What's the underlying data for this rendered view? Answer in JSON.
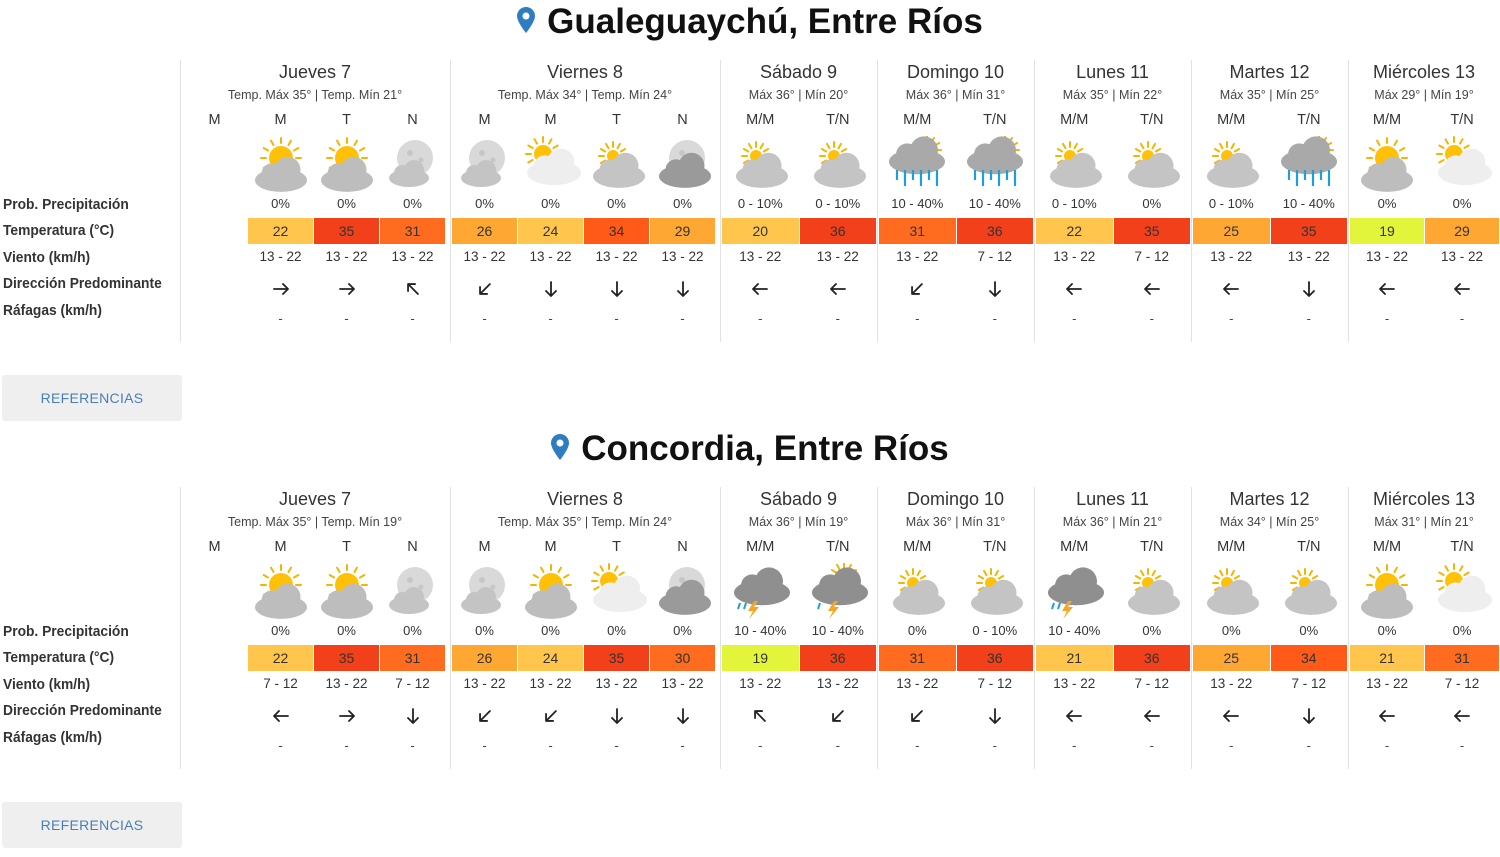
{
  "row_labels": [
    "Prob. Precipitación",
    "Temperatura (°C)",
    "Viento (km/h)",
    "Dirección Predominante",
    "Ráfagas (km/h)"
  ],
  "references_label": "REFERENCIAS",
  "temp_colors": {
    "19": "#e3f53a",
    "20": "#ffc54d",
    "21": "#ffc54d",
    "22": "#ffc54d",
    "24": "#ffc54d",
    "25": "#ffa733",
    "26": "#ffa733",
    "29": "#ffa733",
    "30": "#ff6b1f",
    "31": "#ff6b1f",
    "34": "#ff5a17",
    "35": "#f2401a",
    "36": "#f2401a"
  },
  "locations": [
    {
      "name": "Gualeguaychú, Entre Ríos",
      "days": [
        {
          "name": "Jueves 7",
          "minmax": "Temp. Máx 35° | Temp. Mín 21°",
          "slots": [
            {
              "period": "M",
              "icon": "none",
              "prob": "",
              "temp": "",
              "wind": "",
              "dir": "",
              "gust": ""
            },
            {
              "period": "M",
              "icon": "sun-cloud",
              "prob": "0%",
              "temp": "22",
              "wind": "13 - 22",
              "dir": "E",
              "gust": "-"
            },
            {
              "period": "T",
              "icon": "sun-cloud",
              "prob": "0%",
              "temp": "35",
              "wind": "13 - 22",
              "dir": "E",
              "gust": "-"
            },
            {
              "period": "N",
              "icon": "moon-cloud",
              "prob": "0%",
              "temp": "31",
              "wind": "13 - 22",
              "dir": "NW",
              "gust": "-"
            }
          ]
        },
        {
          "name": "Viernes 8",
          "minmax": "Temp. Máx 34° | Temp. Mín 24°",
          "slots": [
            {
              "period": "M",
              "icon": "moon-cloud",
              "prob": "0%",
              "temp": "26",
              "wind": "13 - 22",
              "dir": "SW",
              "gust": "-"
            },
            {
              "period": "M",
              "icon": "sun-big-cloud",
              "prob": "0%",
              "temp": "24",
              "wind": "13 - 22",
              "dir": "S",
              "gust": "-"
            },
            {
              "period": "T",
              "icon": "partly-cloudy",
              "prob": "0%",
              "temp": "34",
              "wind": "13 - 22",
              "dir": "S",
              "gust": "-"
            },
            {
              "period": "N",
              "icon": "cloudy-moon",
              "prob": "0%",
              "temp": "29",
              "wind": "13 - 22",
              "dir": "S",
              "gust": "-"
            }
          ]
        },
        {
          "name": "Sábado 9",
          "minmax": "Máx 36° | Mín 20°",
          "slots": [
            {
              "period": "M/M",
              "icon": "partly-cloudy",
              "prob": "0 - 10%",
              "temp": "20",
              "wind": "13 - 22",
              "dir": "W",
              "gust": "-"
            },
            {
              "period": "T/N",
              "icon": "partly-cloudy",
              "prob": "0 - 10%",
              "temp": "36",
              "wind": "13 - 22",
              "dir": "W",
              "gust": "-"
            }
          ]
        },
        {
          "name": "Domingo 10",
          "minmax": "Máx 36° | Mín 31°",
          "slots": [
            {
              "period": "M/M",
              "icon": "rain",
              "prob": "10 - 40%",
              "temp": "31",
              "wind": "13 - 22",
              "dir": "SW",
              "gust": "-"
            },
            {
              "period": "T/N",
              "icon": "rain",
              "prob": "10 - 40%",
              "temp": "36",
              "wind": "7 - 12",
              "dir": "S",
              "gust": "-"
            }
          ]
        },
        {
          "name": "Lunes 11",
          "minmax": "Máx 35° | Mín 22°",
          "slots": [
            {
              "period": "M/M",
              "icon": "partly-cloudy",
              "prob": "0 - 10%",
              "temp": "22",
              "wind": "13 - 22",
              "dir": "W",
              "gust": "-"
            },
            {
              "period": "T/N",
              "icon": "partly-cloudy",
              "prob": "0%",
              "temp": "35",
              "wind": "7 - 12",
              "dir": "W",
              "gust": "-"
            }
          ]
        },
        {
          "name": "Martes 12",
          "minmax": "Máx 35° | Mín 25°",
          "slots": [
            {
              "period": "M/M",
              "icon": "partly-cloudy",
              "prob": "0 - 10%",
              "temp": "25",
              "wind": "13 - 22",
              "dir": "W",
              "gust": "-"
            },
            {
              "period": "T/N",
              "icon": "rain",
              "prob": "10 - 40%",
              "temp": "35",
              "wind": "13 - 22",
              "dir": "S",
              "gust": "-"
            }
          ]
        },
        {
          "name": "Miércoles 13",
          "minmax": "Máx 29° | Mín 19°",
          "slots": [
            {
              "period": "M/M",
              "icon": "sun-cloud",
              "prob": "0%",
              "temp": "19",
              "wind": "13 - 22",
              "dir": "W",
              "gust": "-"
            },
            {
              "period": "T/N",
              "icon": "sun-big-cloud",
              "prob": "0%",
              "temp": "29",
              "wind": "13 - 22",
              "dir": "W",
              "gust": "-"
            }
          ]
        }
      ]
    },
    {
      "name": "Concordia, Entre Ríos",
      "days": [
        {
          "name": "Jueves 7",
          "minmax": "Temp. Máx 35° | Temp. Mín 19°",
          "slots": [
            {
              "period": "M",
              "icon": "none",
              "prob": "",
              "temp": "",
              "wind": "",
              "dir": "",
              "gust": ""
            },
            {
              "period": "M",
              "icon": "sun-cloud",
              "prob": "0%",
              "temp": "22",
              "wind": "7 - 12",
              "dir": "W",
              "gust": "-"
            },
            {
              "period": "T",
              "icon": "sun-cloud",
              "prob": "0%",
              "temp": "35",
              "wind": "13 - 22",
              "dir": "E",
              "gust": "-"
            },
            {
              "period": "N",
              "icon": "moon-cloud",
              "prob": "0%",
              "temp": "31",
              "wind": "7 - 12",
              "dir": "S",
              "gust": "-"
            }
          ]
        },
        {
          "name": "Viernes 8",
          "minmax": "Temp. Máx 35° | Temp. Mín 24°",
          "slots": [
            {
              "period": "M",
              "icon": "moon-cloud",
              "prob": "0%",
              "temp": "26",
              "wind": "13 - 22",
              "dir": "SW",
              "gust": "-"
            },
            {
              "period": "M",
              "icon": "sun-cloud",
              "prob": "0%",
              "temp": "24",
              "wind": "13 - 22",
              "dir": "SW",
              "gust": "-"
            },
            {
              "period": "T",
              "icon": "sun-big-cloud",
              "prob": "0%",
              "temp": "35",
              "wind": "13 - 22",
              "dir": "S",
              "gust": "-"
            },
            {
              "period": "N",
              "icon": "cloudy-moon",
              "prob": "0%",
              "temp": "30",
              "wind": "13 - 22",
              "dir": "S",
              "gust": "-"
            }
          ]
        },
        {
          "name": "Sábado 9",
          "minmax": "Máx 36° | Mín 19°",
          "slots": [
            {
              "period": "M/M",
              "icon": "storm",
              "prob": "10 - 40%",
              "temp": "19",
              "wind": "13 - 22",
              "dir": "NW",
              "gust": "-"
            },
            {
              "period": "T/N",
              "icon": "storm-sun",
              "prob": "10 - 40%",
              "temp": "36",
              "wind": "13 - 22",
              "dir": "SW",
              "gust": "-"
            }
          ]
        },
        {
          "name": "Domingo 10",
          "minmax": "Máx 36° | Mín 31°",
          "slots": [
            {
              "period": "M/M",
              "icon": "partly-cloudy",
              "prob": "0%",
              "temp": "31",
              "wind": "13 - 22",
              "dir": "SW",
              "gust": "-"
            },
            {
              "period": "T/N",
              "icon": "partly-cloudy",
              "prob": "0 - 10%",
              "temp": "36",
              "wind": "7 - 12",
              "dir": "S",
              "gust": "-"
            }
          ]
        },
        {
          "name": "Lunes 11",
          "minmax": "Máx 36° | Mín 21°",
          "slots": [
            {
              "period": "M/M",
              "icon": "storm",
              "prob": "10 - 40%",
              "temp": "21",
              "wind": "13 - 22",
              "dir": "W",
              "gust": "-"
            },
            {
              "period": "T/N",
              "icon": "partly-cloudy",
              "prob": "0%",
              "temp": "36",
              "wind": "7 - 12",
              "dir": "W",
              "gust": "-"
            }
          ]
        },
        {
          "name": "Martes 12",
          "minmax": "Máx 34° | Mín 25°",
          "slots": [
            {
              "period": "M/M",
              "icon": "partly-cloudy",
              "prob": "0%",
              "temp": "25",
              "wind": "13 - 22",
              "dir": "W",
              "gust": "-"
            },
            {
              "period": "T/N",
              "icon": "partly-cloudy",
              "prob": "0%",
              "temp": "34",
              "wind": "7 - 12",
              "dir": "S",
              "gust": "-"
            }
          ]
        },
        {
          "name": "Miércoles 13",
          "minmax": "Máx 31° | Mín 21°",
          "slots": [
            {
              "period": "M/M",
              "icon": "sun-cloud",
              "prob": "0%",
              "temp": "21",
              "wind": "13 - 22",
              "dir": "W",
              "gust": "-"
            },
            {
              "period": "T/N",
              "icon": "sun-big-cloud",
              "prob": "0%",
              "temp": "31",
              "wind": "7 - 12",
              "dir": "W",
              "gust": "-"
            }
          ]
        }
      ]
    }
  ]
}
